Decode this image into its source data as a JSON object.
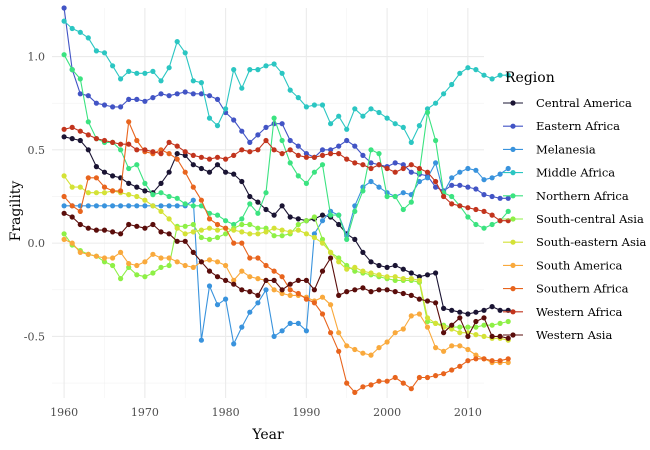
{
  "chart_data": {
    "type": "line",
    "xlabel": "Year",
    "ylabel": "Fragility",
    "xlim": [
      1958.5,
      2012
    ],
    "ylim": [
      -0.83,
      1.26
    ],
    "x_ticks": [
      1960,
      1970,
      1980,
      1990,
      2000,
      2010
    ],
    "y_ticks": [
      -0.5,
      0.0,
      0.5,
      1.0
    ],
    "y_tick_labels": [
      "-0.5",
      "0.0",
      "0.5",
      "1.0"
    ],
    "grid": true,
    "legend_title": "Region",
    "legend_position": "right",
    "series": [
      {
        "name": "Central America",
        "color": "#1a1433",
        "values": [
          0.57,
          0.56,
          0.55,
          0.5,
          0.41,
          0.38,
          0.36,
          0.35,
          0.32,
          0.3,
          0.28,
          0.27,
          0.32,
          0.38,
          0.48,
          0.47,
          0.42,
          0.4,
          0.38,
          0.42,
          0.38,
          0.37,
          0.33,
          0.25,
          0.22,
          0.18,
          0.15,
          0.2,
          0.14,
          0.13,
          0.12,
          0.13,
          0.15,
          0.14,
          0.1,
          0.05,
          0.02,
          -0.05,
          -0.1,
          -0.12,
          -0.13,
          -0.12,
          -0.14,
          -0.16,
          -0.18,
          -0.17,
          -0.16,
          -0.35,
          -0.36,
          -0.37,
          -0.38,
          -0.37,
          -0.36,
          -0.34,
          -0.36,
          -0.36
        ]
      },
      {
        "name": "Eastern Africa",
        "color": "#4254c5",
        "values": [
          1.26,
          0.93,
          0.8,
          0.79,
          0.75,
          0.74,
          0.73,
          0.73,
          0.77,
          0.77,
          0.76,
          0.78,
          0.8,
          0.79,
          0.8,
          0.81,
          0.8,
          0.8,
          0.79,
          0.77,
          0.7,
          0.66,
          0.6,
          0.54,
          0.58,
          0.62,
          0.64,
          0.64,
          0.55,
          0.52,
          0.48,
          0.46,
          0.5,
          0.5,
          0.52,
          0.55,
          0.52,
          0.47,
          0.43,
          0.42,
          0.41,
          0.43,
          0.42,
          0.38,
          0.37,
          0.36,
          0.3,
          0.28,
          0.31,
          0.31,
          0.3,
          0.29,
          0.26,
          0.25,
          0.24,
          0.24
        ]
      },
      {
        "name": "Melanesia",
        "color": "#3993dd",
        "values": [
          0.2,
          0.2,
          0.2,
          0.2,
          0.2,
          0.2,
          0.2,
          0.2,
          0.2,
          0.2,
          0.2,
          0.2,
          0.2,
          0.2,
          0.2,
          0.2,
          0.23,
          -0.52,
          -0.23,
          -0.33,
          -0.3,
          -0.54,
          -0.45,
          -0.37,
          -0.32,
          -0.25,
          -0.5,
          -0.47,
          -0.43,
          -0.43,
          -0.47,
          0.05,
          0.12,
          0.17,
          0.15,
          0.04,
          0.2,
          0.3,
          0.33,
          0.3,
          0.27,
          0.25,
          0.27,
          0.26,
          0.33,
          0.35,
          0.43,
          0.27,
          0.35,
          0.38,
          0.4,
          0.39,
          0.34,
          0.35,
          0.37,
          0.4
        ]
      },
      {
        "name": "Middle Africa",
        "color": "#2bc6c2",
        "values": [
          1.19,
          1.15,
          1.13,
          1.1,
          1.03,
          1.02,
          0.95,
          0.88,
          0.92,
          0.91,
          0.91,
          0.92,
          0.87,
          0.94,
          1.08,
          1.02,
          0.87,
          0.86,
          0.67,
          0.63,
          0.72,
          0.93,
          0.83,
          0.93,
          0.93,
          0.95,
          0.96,
          0.91,
          0.82,
          0.78,
          0.73,
          0.74,
          0.74,
          0.64,
          0.68,
          0.61,
          0.72,
          0.68,
          0.72,
          0.7,
          0.67,
          0.64,
          0.62,
          0.54,
          0.63,
          0.72,
          0.75,
          0.8,
          0.85,
          0.91,
          0.94,
          0.93,
          0.9,
          0.88,
          0.9,
          0.9
        ]
      },
      {
        "name": "Northern Africa",
        "color": "#3be380",
        "values": [
          1.01,
          0.93,
          0.88,
          0.65,
          0.56,
          0.54,
          0.54,
          0.5,
          0.4,
          0.42,
          0.32,
          0.26,
          0.27,
          0.25,
          0.24,
          0.21,
          0.2,
          0.2,
          0.16,
          0.15,
          0.12,
          0.1,
          0.13,
          0.21,
          0.16,
          0.27,
          0.67,
          0.55,
          0.43,
          0.36,
          0.32,
          0.38,
          0.42,
          0.15,
          0.15,
          0.02,
          0.17,
          0.28,
          0.5,
          0.48,
          0.25,
          0.25,
          0.18,
          0.22,
          0.38,
          0.7,
          0.55,
          0.27,
          0.25,
          0.2,
          0.14,
          0.1,
          0.08,
          0.1,
          0.12,
          0.17
        ]
      },
      {
        "name": "South-central Asia",
        "color": "#8ef046",
        "values": [
          0.05,
          -0.01,
          -0.04,
          -0.06,
          -0.07,
          -0.1,
          -0.12,
          -0.19,
          -0.13,
          -0.17,
          -0.18,
          -0.16,
          -0.13,
          -0.12,
          0.09,
          0.09,
          0.1,
          0.03,
          0.02,
          0.03,
          0.05,
          0.08,
          0.1,
          0.1,
          0.08,
          0.08,
          0.04,
          0.04,
          0.05,
          0.1,
          0.12,
          0.14,
          0.02,
          -0.05,
          -0.08,
          -0.12,
          -0.15,
          -0.16,
          -0.17,
          -0.18,
          -0.19,
          -0.2,
          -0.2,
          -0.2,
          -0.21,
          -0.42,
          -0.43,
          -0.44,
          -0.45,
          -0.45,
          -0.45,
          -0.45,
          -0.44,
          -0.44,
          -0.43,
          -0.42
        ]
      },
      {
        "name": "South-eastern Asia",
        "color": "#d4e236",
        "values": [
          0.36,
          0.3,
          0.3,
          0.27,
          0.27,
          0.27,
          0.28,
          0.27,
          0.26,
          0.25,
          0.23,
          0.2,
          0.17,
          0.13,
          0.08,
          0.05,
          0.06,
          0.07,
          0.08,
          0.07,
          0.08,
          0.07,
          0.06,
          0.05,
          0.05,
          0.06,
          0.08,
          0.07,
          0.06,
          0.07,
          0.05,
          0.03,
          0.0,
          -0.05,
          -0.1,
          -0.14,
          -0.13,
          -0.15,
          -0.16,
          -0.17,
          -0.18,
          -0.18,
          -0.19,
          -0.19,
          -0.2,
          -0.4,
          -0.43,
          -0.45,
          -0.46,
          -0.48,
          -0.48,
          -0.49,
          -0.5,
          -0.51,
          -0.51,
          -0.52
        ]
      },
      {
        "name": "South America",
        "color": "#f9a93c",
        "values": [
          0.02,
          0.0,
          -0.05,
          -0.06,
          -0.07,
          -0.08,
          -0.08,
          -0.05,
          -0.11,
          -0.12,
          -0.1,
          -0.06,
          -0.08,
          -0.08,
          -0.1,
          -0.12,
          -0.13,
          -0.1,
          -0.09,
          -0.1,
          -0.12,
          -0.2,
          -0.15,
          -0.18,
          -0.19,
          -0.2,
          -0.25,
          -0.27,
          -0.28,
          -0.28,
          -0.29,
          -0.31,
          -0.29,
          -0.33,
          -0.48,
          -0.55,
          -0.57,
          -0.59,
          -0.6,
          -0.56,
          -0.53,
          -0.48,
          -0.46,
          -0.39,
          -0.38,
          -0.45,
          -0.56,
          -0.58,
          -0.55,
          -0.55,
          -0.57,
          -0.6,
          -0.62,
          -0.64,
          -0.64,
          -0.64
        ]
      },
      {
        "name": "Southern Africa",
        "color": "#e8641d",
        "values": [
          0.25,
          0.2,
          0.17,
          0.35,
          0.35,
          0.3,
          0.28,
          0.28,
          0.65,
          0.55,
          0.49,
          0.48,
          0.5,
          0.48,
          0.45,
          0.38,
          0.3,
          0.23,
          0.13,
          0.1,
          0.08,
          0.0,
          0.0,
          -0.08,
          -0.08,
          -0.12,
          -0.15,
          -0.18,
          -0.25,
          -0.27,
          -0.3,
          -0.32,
          -0.38,
          -0.48,
          -0.58,
          -0.75,
          -0.8,
          -0.77,
          -0.76,
          -0.74,
          -0.74,
          -0.72,
          -0.75,
          -0.78,
          -0.72,
          -0.72,
          -0.71,
          -0.7,
          -0.68,
          -0.66,
          -0.63,
          -0.62,
          -0.62,
          -0.63,
          -0.63,
          -0.62
        ]
      },
      {
        "name": "Western Africa",
        "color": "#c2341d",
        "values": [
          0.61,
          0.62,
          0.6,
          0.58,
          0.56,
          0.55,
          0.54,
          0.53,
          0.53,
          0.5,
          0.5,
          0.49,
          0.48,
          0.54,
          0.52,
          0.49,
          0.47,
          0.46,
          0.45,
          0.46,
          0.45,
          0.47,
          0.5,
          0.49,
          0.5,
          0.55,
          0.5,
          0.48,
          0.5,
          0.47,
          0.46,
          0.46,
          0.47,
          0.48,
          0.48,
          0.45,
          0.43,
          0.42,
          0.4,
          0.42,
          0.4,
          0.38,
          0.4,
          0.42,
          0.4,
          0.38,
          0.33,
          0.25,
          0.21,
          0.2,
          0.19,
          0.18,
          0.17,
          0.15,
          0.12,
          0.12
        ]
      },
      {
        "name": "Western Asia",
        "color": "#5a0d0b",
        "values": [
          0.16,
          0.14,
          0.1,
          0.08,
          0.07,
          0.07,
          0.06,
          0.05,
          0.1,
          0.09,
          0.08,
          0.1,
          0.06,
          0.05,
          0.01,
          0.01,
          -0.05,
          -0.1,
          -0.15,
          -0.18,
          -0.2,
          -0.22,
          -0.25,
          -0.26,
          -0.28,
          -0.2,
          -0.2,
          -0.25,
          -0.22,
          -0.2,
          -0.2,
          -0.25,
          -0.15,
          -0.08,
          -0.28,
          -0.26,
          -0.25,
          -0.24,
          -0.26,
          -0.25,
          -0.25,
          -0.26,
          -0.27,
          -0.28,
          -0.3,
          -0.31,
          -0.32,
          -0.48,
          -0.44,
          -0.4,
          -0.5,
          -0.42,
          -0.4,
          -0.5,
          -0.5,
          -0.51
        ]
      }
    ]
  }
}
